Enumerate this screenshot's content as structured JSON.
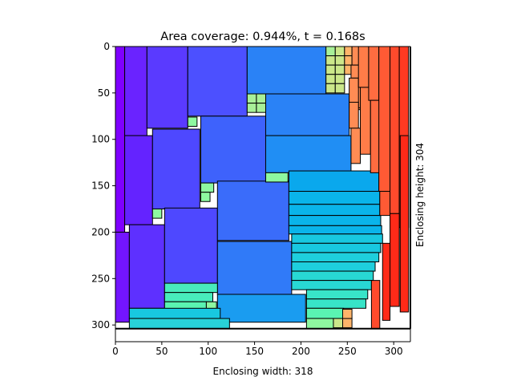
{
  "chart_data": {
    "type": "rect-packing",
    "title": "Area coverage: 0.944%, t = 0.168s",
    "xlabel": "Enclosing width: 318",
    "ylabel": "Enclosing height: 304",
    "xlim": [
      0,
      318
    ],
    "ylim": [
      318,
      0
    ],
    "xticks": [
      0,
      50,
      100,
      150,
      200,
      250,
      300
    ],
    "yticks": [
      0,
      50,
      100,
      150,
      200,
      250,
      300
    ],
    "enclosing": {
      "width": 318,
      "height": 304
    },
    "grid": false,
    "rectangles": [
      {
        "x": 0,
        "y": 0,
        "w": 10,
        "h": 200,
        "color": "#7f00ff"
      },
      {
        "x": 0,
        "y": 200,
        "w": 15,
        "h": 97,
        "color": "#7315ff"
      },
      {
        "x": 10,
        "y": 0,
        "w": 24,
        "h": 96,
        "color": "#6a23ff"
      },
      {
        "x": 10,
        "y": 96,
        "w": 30,
        "h": 96,
        "color": "#6423ff"
      },
      {
        "x": 15,
        "y": 192,
        "w": 38,
        "h": 90,
        "color": "#5e30ff"
      },
      {
        "x": 34,
        "y": 0,
        "w": 44,
        "h": 88,
        "color": "#5a3aff"
      },
      {
        "x": 40,
        "y": 89,
        "w": 51,
        "h": 86,
        "color": "#4e48ff"
      },
      {
        "x": 53,
        "y": 174,
        "w": 57,
        "h": 81,
        "color": "#4e48ff"
      },
      {
        "x": 78,
        "y": 0,
        "w": 64,
        "h": 75,
        "color": "#4c50ff"
      },
      {
        "x": 92,
        "y": 75,
        "w": 70,
        "h": 72,
        "color": "#3e62fc"
      },
      {
        "x": 110,
        "y": 145,
        "w": 77,
        "h": 64,
        "color": "#3a6cfa"
      },
      {
        "x": 110,
        "y": 210,
        "w": 80,
        "h": 57,
        "color": "#307af8"
      },
      {
        "x": 142,
        "y": 0,
        "w": 85,
        "h": 51,
        "color": "#2a82f6"
      },
      {
        "x": 162,
        "y": 51,
        "w": 90,
        "h": 45,
        "color": "#2a82f6"
      },
      {
        "x": 162,
        "y": 96,
        "w": 92,
        "h": 40,
        "color": "#208ef4"
      },
      {
        "x": 110,
        "y": 267,
        "w": 95,
        "h": 30,
        "color": "#1a9cf0"
      },
      {
        "x": 187,
        "y": 134,
        "w": 97,
        "h": 22,
        "color": "#0aa8ed"
      },
      {
        "x": 187,
        "y": 156,
        "w": 98,
        "h": 14,
        "color": "#0ab4ea"
      },
      {
        "x": 187,
        "y": 170,
        "w": 98,
        "h": 12,
        "color": "#0ab4ea"
      },
      {
        "x": 187,
        "y": 182,
        "w": 99,
        "h": 11,
        "color": "#0ab4ea"
      },
      {
        "x": 187,
        "y": 193,
        "w": 100,
        "h": 9,
        "color": "#0ab4ea"
      },
      {
        "x": 190,
        "y": 202,
        "w": 98,
        "h": 10,
        "color": "#18c8e0"
      },
      {
        "x": 190,
        "y": 212,
        "w": 96,
        "h": 10,
        "color": "#18c8e0"
      },
      {
        "x": 190,
        "y": 222,
        "w": 94,
        "h": 10,
        "color": "#1ecfdd"
      },
      {
        "x": 190,
        "y": 232,
        "w": 90,
        "h": 10,
        "color": "#1ecfdd"
      },
      {
        "x": 190,
        "y": 242,
        "w": 88,
        "h": 10,
        "color": "#28d8d4"
      },
      {
        "x": 190,
        "y": 252,
        "w": 86,
        "h": 10,
        "color": "#28d8d4"
      },
      {
        "x": 206,
        "y": 262,
        "w": 66,
        "h": 10,
        "color": "#38e4c8"
      },
      {
        "x": 206,
        "y": 272,
        "w": 64,
        "h": 10,
        "color": "#38e4c8"
      },
      {
        "x": 53,
        "y": 255,
        "w": 57,
        "h": 10,
        "color": "#48ecbc"
      },
      {
        "x": 53,
        "y": 265,
        "w": 52,
        "h": 10,
        "color": "#48ecbc"
      },
      {
        "x": 53,
        "y": 275,
        "w": 45,
        "h": 10,
        "color": "#5af4b2"
      },
      {
        "x": 98,
        "y": 275,
        "w": 11,
        "h": 10,
        "color": "#8ef8a0"
      },
      {
        "x": 15,
        "y": 282,
        "w": 98,
        "h": 11,
        "color": "#18c8e0"
      },
      {
        "x": 15,
        "y": 293,
        "w": 108,
        "h": 11,
        "color": "#28d2d8"
      },
      {
        "x": 206,
        "y": 282,
        "w": 40,
        "h": 11,
        "color": "#5af4b2"
      },
      {
        "x": 206,
        "y": 293,
        "w": 29,
        "h": 11,
        "color": "#8ef8a0"
      },
      {
        "x": 235,
        "y": 293,
        "w": 10,
        "h": 10,
        "color": "#cce78a"
      },
      {
        "x": 245,
        "y": 293,
        "w": 10,
        "h": 10,
        "color": "#ffb46a"
      },
      {
        "x": 245,
        "y": 283,
        "w": 10,
        "h": 10,
        "color": "#ffb46a"
      },
      {
        "x": 40,
        "y": 175,
        "w": 10,
        "h": 10,
        "color": "#8ef8a0"
      },
      {
        "x": 78,
        "y": 76,
        "w": 10,
        "h": 10,
        "color": "#8ef8a0"
      },
      {
        "x": 92,
        "y": 147,
        "w": 14,
        "h": 10,
        "color": "#8ef8a0"
      },
      {
        "x": 92,
        "y": 157,
        "w": 10,
        "h": 10,
        "color": "#8ef8a0"
      },
      {
        "x": 162,
        "y": 136,
        "w": 24,
        "h": 10,
        "color": "#8ef8a0"
      },
      {
        "x": 142,
        "y": 51,
        "w": 10,
        "h": 10,
        "color": "#a8f098"
      },
      {
        "x": 152,
        "y": 51,
        "w": 10,
        "h": 10,
        "color": "#a8f098"
      },
      {
        "x": 142,
        "y": 61,
        "w": 10,
        "h": 10,
        "color": "#a8f098"
      },
      {
        "x": 152,
        "y": 61,
        "w": 10,
        "h": 10,
        "color": "#a8f098"
      },
      {
        "x": 227,
        "y": 0,
        "w": 10,
        "h": 10,
        "color": "#a8f098"
      },
      {
        "x": 237,
        "y": 0,
        "w": 10,
        "h": 10,
        "color": "#cce78a"
      },
      {
        "x": 247,
        "y": 0,
        "w": 8,
        "h": 10,
        "color": "#ffb46a"
      },
      {
        "x": 227,
        "y": 10,
        "w": 10,
        "h": 10,
        "color": "#cce78a"
      },
      {
        "x": 237,
        "y": 10,
        "w": 10,
        "h": 10,
        "color": "#cce78a"
      },
      {
        "x": 247,
        "y": 10,
        "w": 8,
        "h": 10,
        "color": "#ffb46a"
      },
      {
        "x": 227,
        "y": 20,
        "w": 10,
        "h": 10,
        "color": "#cce78a"
      },
      {
        "x": 237,
        "y": 20,
        "w": 10,
        "h": 10,
        "color": "#cce78a"
      },
      {
        "x": 247,
        "y": 20,
        "w": 8,
        "h": 10,
        "color": "#ffb46a"
      },
      {
        "x": 227,
        "y": 30,
        "w": 10,
        "h": 10,
        "color": "#cce78a"
      },
      {
        "x": 237,
        "y": 30,
        "w": 10,
        "h": 10,
        "color": "#cce78a"
      },
      {
        "x": 227,
        "y": 40,
        "w": 10,
        "h": 10,
        "color": "#cce78a"
      },
      {
        "x": 237,
        "y": 40,
        "w": 10,
        "h": 10,
        "color": "#cce78a"
      },
      {
        "x": 255,
        "y": 0,
        "w": 10,
        "h": 20,
        "color": "#ff8c54"
      },
      {
        "x": 254,
        "y": 20,
        "w": 10,
        "h": 48,
        "color": "#ff8c54"
      },
      {
        "x": 255,
        "y": 34,
        "w": 10,
        "h": 32,
        "color": "#ff8c54"
      },
      {
        "x": 252,
        "y": 34,
        "w": 10,
        "h": 32,
        "color": "#ff8c54"
      },
      {
        "x": 252,
        "y": 60,
        "w": 10,
        "h": 28,
        "color": "#ff8c54"
      },
      {
        "x": 254,
        "y": 88,
        "w": 10,
        "h": 38,
        "color": "#ff8c54"
      },
      {
        "x": 262,
        "y": 0,
        "w": 11,
        "h": 44,
        "color": "#ff7c48"
      },
      {
        "x": 264,
        "y": 44,
        "w": 11,
        "h": 72,
        "color": "#ff7c48"
      },
      {
        "x": 273,
        "y": 0,
        "w": 11,
        "h": 58,
        "color": "#ff6c40"
      },
      {
        "x": 275,
        "y": 58,
        "w": 10,
        "h": 78,
        "color": "#ff6c40"
      },
      {
        "x": 284,
        "y": 0,
        "w": 12,
        "h": 156,
        "color": "#ff5a34"
      },
      {
        "x": 285,
        "y": 156,
        "w": 11,
        "h": 26,
        "color": "#ff5a34"
      },
      {
        "x": 296,
        "y": 0,
        "w": 10,
        "h": 180,
        "color": "#ff4a2c"
      },
      {
        "x": 306,
        "y": 0,
        "w": 10,
        "h": 195,
        "color": "#ff3a22"
      },
      {
        "x": 307,
        "y": 96,
        "w": 9,
        "h": 190,
        "color": "#ff2a18"
      },
      {
        "x": 296,
        "y": 180,
        "w": 10,
        "h": 100,
        "color": "#ff2a18"
      },
      {
        "x": 288,
        "y": 212,
        "w": 8,
        "h": 83,
        "color": "#ff2a18"
      },
      {
        "x": 276,
        "y": 252,
        "w": 9,
        "h": 52,
        "color": "#ff4a2c"
      }
    ]
  }
}
